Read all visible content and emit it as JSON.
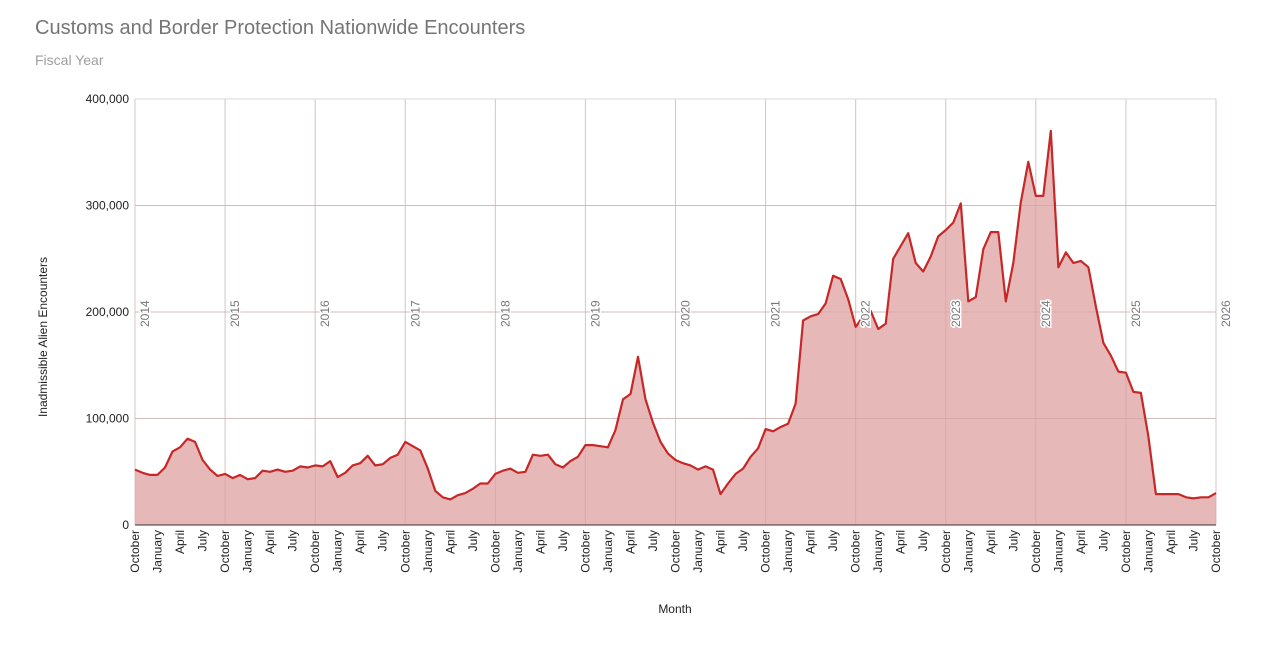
{
  "chart_data": {
    "type": "area",
    "title": "Customs and Border Protection Nationwide Encounters",
    "subtitle": "Fiscal Year",
    "xlabel": "Month",
    "ylabel": "Inadmissible Alien Encounters",
    "ylim": [
      0,
      400000
    ],
    "yticks": [
      "0",
      "100,000",
      "200,000",
      "300,000",
      "400,000"
    ],
    "ytick_values": [
      0,
      100000,
      200000,
      300000,
      400000
    ],
    "xtick_cycle": [
      "October",
      "January",
      "April",
      "July"
    ],
    "year_labels": [
      "2014",
      "2015",
      "2016",
      "2017",
      "2018",
      "2019",
      "2020",
      "2021",
      "2022",
      "2023",
      "2024",
      "2025",
      "2026"
    ],
    "x_start": "October 2013",
    "x_end": "October 2025",
    "grid": true,
    "legend": "none",
    "line_color": "#c62828",
    "fill_color": "#e6b4b4",
    "series": [
      {
        "name": "Inadmissible Alien Encounters",
        "values": [
          52000,
          49000,
          47000,
          47000,
          54000,
          69000,
          73000,
          81000,
          78000,
          61000,
          52000,
          46000,
          48000,
          44000,
          47000,
          43000,
          44000,
          51000,
          50000,
          52000,
          50000,
          51000,
          55000,
          54000,
          56000,
          55000,
          60000,
          45000,
          49000,
          56000,
          58000,
          65000,
          56000,
          57000,
          63000,
          66000,
          78000,
          74000,
          70000,
          53000,
          32000,
          26000,
          24000,
          28000,
          30000,
          34000,
          39000,
          39000,
          48000,
          51000,
          53000,
          49000,
          50000,
          66000,
          65000,
          66000,
          57000,
          54000,
          60000,
          64000,
          75000,
          75000,
          74000,
          73000,
          89000,
          118000,
          123000,
          158000,
          118000,
          96000,
          78000,
          67000,
          61000,
          58000,
          56000,
          52000,
          55000,
          52000,
          29000,
          39000,
          48000,
          53000,
          64000,
          72000,
          90000,
          88000,
          92000,
          95000,
          114000,
          192000,
          196000,
          198000,
          208000,
          234000,
          231000,
          212000,
          186000,
          196000,
          201000,
          184000,
          189000,
          250000,
          262000,
          274000,
          246000,
          238000,
          252000,
          271000,
          277000,
          284000,
          302000,
          210000,
          214000,
          259000,
          275000,
          275000,
          210000,
          246000,
          303000,
          341000,
          309000,
          309000,
          370000,
          242000,
          256000,
          246000,
          248000,
          242000,
          205000,
          171000,
          159000,
          144000,
          143000,
          125000,
          124000,
          83000,
          29000,
          29000,
          29000,
          29000,
          26000,
          25000,
          26000,
          26000,
          30000
        ]
      }
    ]
  }
}
